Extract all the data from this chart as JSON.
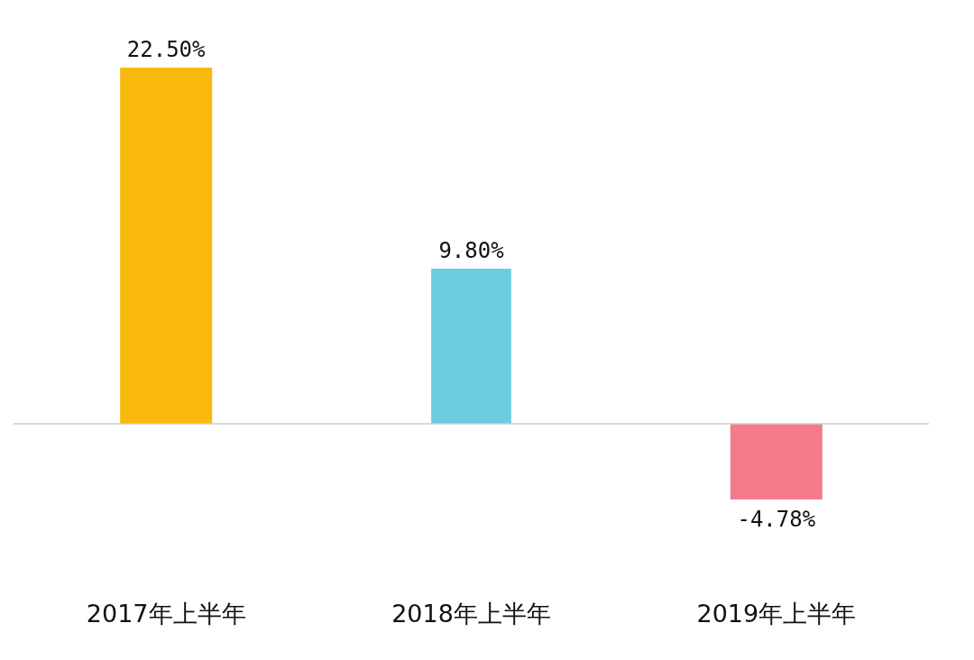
{
  "chart_data": {
    "type": "bar",
    "categories": [
      "2017年上半年",
      "2018年上半年",
      "2019年上半年"
    ],
    "values": [
      22.5,
      9.8,
      -4.78
    ],
    "colors": [
      "#f9b90d",
      "#6ccde0",
      "#f47a8c"
    ],
    "value_labels": [
      "22.50%",
      "9.80%",
      "-4.78%"
    ]
  }
}
